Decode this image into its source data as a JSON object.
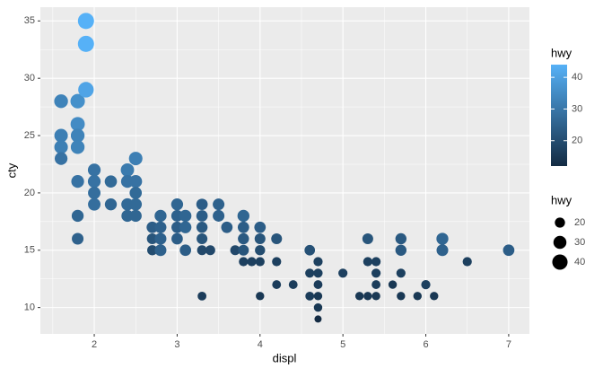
{
  "chart_data": {
    "type": "scatter",
    "x_label": "displ",
    "y_label": "cty",
    "x": [
      1.6,
      1.6,
      1.6,
      1.6,
      1.8,
      1.8,
      1.8,
      1.8,
      1.8,
      1.8,
      1.8,
      1.9,
      1.9,
      1.9,
      2.0,
      2.0,
      2.0,
      2.0,
      2.2,
      2.2,
      2.4,
      2.4,
      2.4,
      2.4,
      2.5,
      2.5,
      2.5,
      2.5,
      2.5,
      2.7,
      2.7,
      2.7,
      2.8,
      2.8,
      2.8,
      2.8,
      3.0,
      3.0,
      3.0,
      3.0,
      3.1,
      3.1,
      3.1,
      3.3,
      3.3,
      3.3,
      3.3,
      3.3,
      3.3,
      3.4,
      3.5,
      3.5,
      3.6,
      3.7,
      3.8,
      3.8,
      3.8,
      3.8,
      3.8,
      3.9,
      4.0,
      4.0,
      4.0,
      4.0,
      4.0,
      4.2,
      4.2,
      4.2,
      4.4,
      4.6,
      4.6,
      4.6,
      4.7,
      4.7,
      4.7,
      4.7,
      4.7,
      4.7,
      5.0,
      5.2,
      5.3,
      5.3,
      5.3,
      5.4,
      5.4,
      5.4,
      5.4,
      5.6,
      5.7,
      5.7,
      5.7,
      5.7,
      5.9,
      6.0,
      6.1,
      6.2,
      6.2,
      6.5,
      7.0
    ],
    "values": [
      28,
      25,
      24,
      23,
      28,
      26,
      25,
      24,
      21,
      18,
      16,
      35,
      33,
      29,
      22,
      21,
      20,
      19,
      21,
      19,
      22,
      21,
      19,
      18,
      23,
      21,
      20,
      19,
      18,
      17,
      16,
      15,
      18,
      17,
      16,
      15,
      19,
      18,
      17,
      16,
      18,
      17,
      15,
      19,
      18,
      17,
      16,
      15,
      11,
      15,
      19,
      18,
      17,
      15,
      18,
      17,
      16,
      15,
      14,
      14,
      17,
      16,
      15,
      14,
      11,
      16,
      14,
      12,
      12,
      15,
      13,
      11,
      14,
      13,
      12,
      11,
      10,
      9,
      13,
      11,
      16,
      14,
      11,
      14,
      13,
      12,
      11,
      12,
      16,
      15,
      13,
      11,
      11,
      12,
      11,
      16,
      15,
      14,
      15
    ],
    "hwy": [
      33,
      32,
      32,
      29,
      36,
      35,
      33,
      33,
      29,
      26,
      25,
      44,
      44,
      41,
      29,
      29,
      28,
      28,
      27,
      26,
      31,
      29,
      27,
      26,
      32,
      29,
      27,
      27,
      26,
      24,
      22,
      20,
      26,
      25,
      25,
      25,
      26,
      25,
      24,
      24,
      26,
      26,
      24,
      24,
      24,
      23,
      22,
      19,
      16,
      19,
      25,
      25,
      24,
      19,
      26,
      24,
      23,
      22,
      17,
      17,
      24,
      22,
      20,
      17,
      15,
      22,
      17,
      16,
      16,
      21,
      17,
      16,
      17,
      17,
      16,
      15,
      15,
      12,
      17,
      15,
      22,
      17,
      15,
      17,
      17,
      16,
      15,
      15,
      23,
      23,
      17,
      15,
      15,
      17,
      15,
      26,
      25,
      17,
      24
    ],
    "xlim": [
      1.35,
      7.25
    ],
    "ylim": [
      7.7,
      36.2
    ],
    "xticks": [
      2,
      3,
      4,
      5,
      6,
      7
    ],
    "yticks": [
      10,
      15,
      20,
      25,
      30,
      35
    ],
    "grid": true,
    "hwy_lim": [
      12,
      44
    ],
    "color_low": "#132B43",
    "color_high": "#56B1F7",
    "legend": {
      "color_title": "hwy",
      "color_ticks": [
        20,
        30,
        40
      ],
      "size_title": "hwy",
      "size_ticks": [
        20,
        30,
        40
      ]
    }
  }
}
